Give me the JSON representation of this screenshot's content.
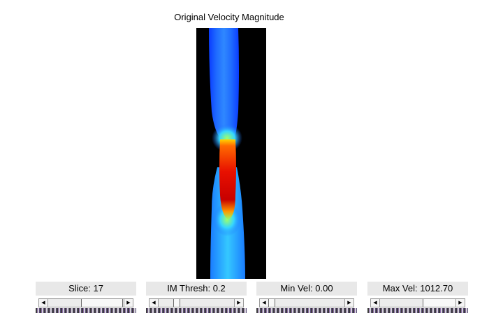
{
  "title": "Original Velocity Magnitude",
  "controls": [
    {
      "label": "Slice: 17",
      "slider_position": 0.45
    },
    {
      "label": "IM Thresh: 0.2",
      "slider_position": 0.2
    },
    {
      "label": "Min Vel: 0.00",
      "slider_position": 0.0
    },
    {
      "label": "Max Vel: 1012.70",
      "slider_position": 0.6
    }
  ],
  "icons": {
    "left": "arrow-left-icon",
    "right": "arrow-right-icon"
  },
  "colors": {
    "background": "#000000",
    "low_velocity": "#1e6cff",
    "high_velocity": "#d90000"
  }
}
